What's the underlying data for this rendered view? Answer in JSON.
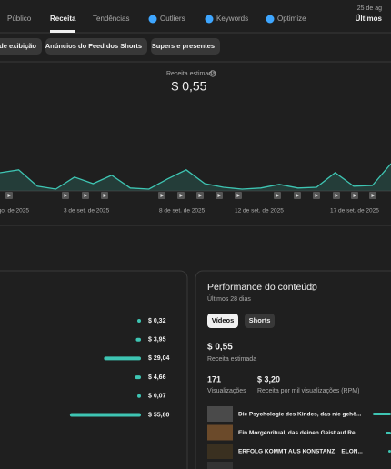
{
  "tabs": [
    "Público",
    "Receita",
    "Tendências",
    "Outliers",
    "Keywords",
    "Optimize"
  ],
  "active_tab_index": 1,
  "date_range": {
    "dates": "25 de ag",
    "label": "Últimos"
  },
  "chips": [
    "de exibição",
    "Anúncios do Feed dos Shorts",
    "Supers e presentes"
  ],
  "chart_data": {
    "type": "line",
    "title": "Receita estimada",
    "total": "$ 0,55",
    "values": [
      0.05,
      0.058,
      0.013,
      0.005,
      0.038,
      0.02,
      0.043,
      0.008,
      0.005,
      0.033,
      0.058,
      0.02,
      0.01,
      0.005,
      0.008,
      0.018,
      0.008,
      0.01,
      0.05,
      0.013,
      0.015,
      0.075
    ],
    "ylim": [
      0,
      0.15
    ],
    "color": "#3ec5b3",
    "x_labels": [
      "ago. de 2025",
      "3 de set. de 2025",
      "8 de set. de 2025",
      "12 de set. de 2025",
      "17 de set. de 2025"
    ]
  },
  "sources": {
    "type": "bar",
    "values": [
      0.32,
      3.95,
      29.04,
      4.66,
      0.07,
      55.8
    ],
    "value_labels": [
      "$ 0,32",
      "$ 3,95",
      "$ 29,04",
      "$ 4,66",
      "$ 0,07",
      "$ 55,80"
    ],
    "xlim": [
      0,
      100
    ],
    "color": "#3ec5b3"
  },
  "content": {
    "title": "Performance do conteúdo",
    "subtitle": "Últimos 28 dias",
    "filters": [
      "Vídeos",
      "Shorts"
    ],
    "revenue": "$ 0,55",
    "revenue_label": "Receita estimada",
    "views": "171",
    "views_label": "Visualizações",
    "rpm": "$ 3,20",
    "rpm_label": "Receita por mil visualizações (RPM)",
    "videos": [
      "Die Psychologie des Kindes, das nie gehö...",
      "Ein Morgenritual, das deinen Geist auf Rei...",
      "ERFOLG KOMMT AUS KONSTANZ _ ELON..."
    ]
  }
}
